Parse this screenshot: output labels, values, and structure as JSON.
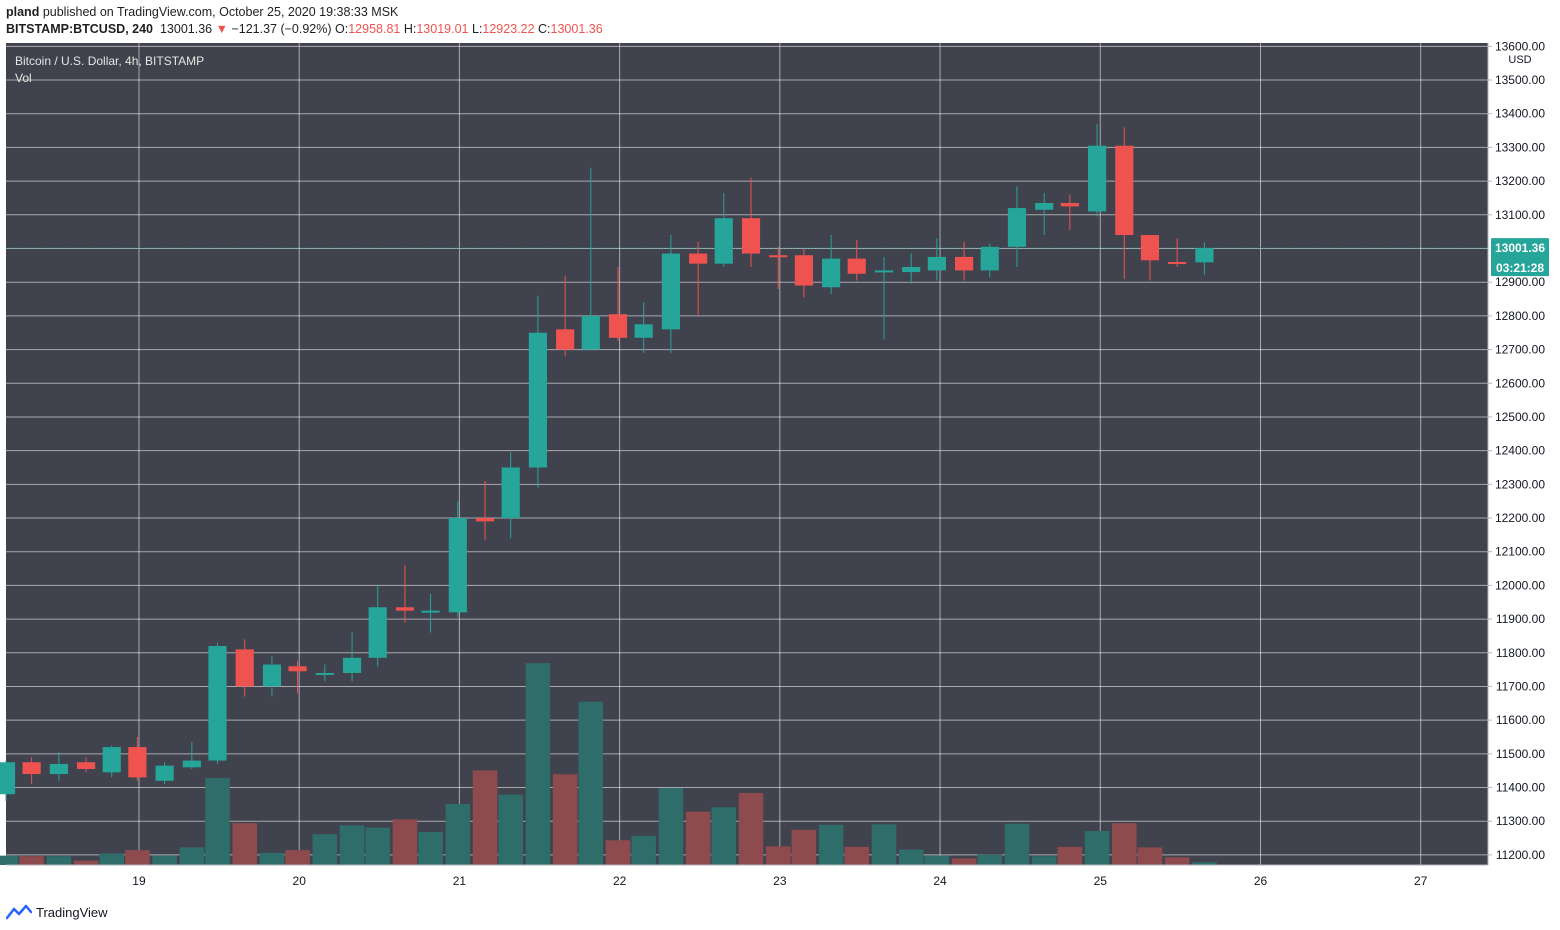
{
  "header": {
    "publisher": "pland",
    "published_line": "published on TradingView.com, October 25, 2020 19:38:33 MSK",
    "symbol": "BITSTAMP:BTCUSD, 240",
    "last": "13001.36",
    "change": "−121.37 (−0.92%)",
    "o_label": "O:",
    "o_value": "12958.81",
    "h_label": "H:",
    "h_value": "13019.01",
    "l_label": "L:",
    "l_value": "12923.22",
    "c_label": "C:",
    "c_value": "13001.36"
  },
  "legend": {
    "title": "Bitcoin / U.S. Dollar, 4h, BITSTAMP",
    "volume_label": "Vol"
  },
  "price_axis": {
    "unit": "USD",
    "current_price": "13001.36",
    "countdown": "03:21:28"
  },
  "footer": {
    "brand": "TradingView"
  },
  "colors": {
    "background": "#40424d",
    "grid": "#ffffff",
    "up": "#26a69a",
    "down": "#ef5350",
    "up_volume": "#2e6d6a",
    "down_volume": "#8e4b4e",
    "axis_text": "#131722"
  },
  "chart_data": {
    "type": "candlestick",
    "title": "Bitcoin / U.S. Dollar, 4h, BITSTAMP",
    "ylabel": "USD",
    "ylim": [
      11170,
      13610
    ],
    "yticks": [
      11200,
      11300,
      11400,
      11500,
      11600,
      11700,
      11800,
      11900,
      12000,
      12100,
      12200,
      12300,
      12400,
      12500,
      12600,
      12700,
      12800,
      12900,
      13000,
      13100,
      13200,
      13300,
      13400,
      13500,
      13600
    ],
    "xlim": [
      18.17,
      27.42
    ],
    "xticks": [
      {
        "x": 19,
        "label": "19"
      },
      {
        "x": 20,
        "label": "20"
      },
      {
        "x": 21,
        "label": "21"
      },
      {
        "x": 22,
        "label": "22"
      },
      {
        "x": 23,
        "label": "23"
      },
      {
        "x": 24,
        "label": "24"
      },
      {
        "x": 25,
        "label": "25"
      },
      {
        "x": 26,
        "label": "26"
      },
      {
        "x": 27,
        "label": "27"
      }
    ],
    "candle_interval_days": 0.1667,
    "candles": [
      {
        "t": 18.17,
        "o": 11380,
        "h": 11480,
        "l": 11360,
        "c": 11475,
        "v": 0.17
      },
      {
        "t": 18.33,
        "o": 11475,
        "h": 11490,
        "l": 11410,
        "c": 11440,
        "v": 0.16
      },
      {
        "t": 18.5,
        "o": 11440,
        "h": 11505,
        "l": 11420,
        "c": 11470,
        "v": 0.16
      },
      {
        "t": 18.67,
        "o": 11475,
        "h": 11490,
        "l": 11445,
        "c": 11455,
        "v": 0.08
      },
      {
        "t": 18.83,
        "o": 11445,
        "h": 11525,
        "l": 11430,
        "c": 11520,
        "v": 0.21
      },
      {
        "t": 18.99,
        "o": 11520,
        "h": 11550,
        "l": 11420,
        "c": 11430,
        "v": 0.27
      },
      {
        "t": 19.16,
        "o": 11420,
        "h": 11475,
        "l": 11410,
        "c": 11465,
        "v": 0.17
      },
      {
        "t": 19.33,
        "o": 11460,
        "h": 11535,
        "l": 11455,
        "c": 11480,
        "v": 0.32
      },
      {
        "t": 19.49,
        "o": 11480,
        "h": 11830,
        "l": 11470,
        "c": 11820,
        "v": 1.58
      },
      {
        "t": 19.66,
        "o": 11810,
        "h": 11840,
        "l": 11670,
        "c": 11700,
        "v": 0.76
      },
      {
        "t": 19.83,
        "o": 11700,
        "h": 11790,
        "l": 11670,
        "c": 11765,
        "v": 0.22
      },
      {
        "t": 19.99,
        "o": 11760,
        "h": 11775,
        "l": 11680,
        "c": 11745,
        "v": 0.27
      },
      {
        "t": 20.16,
        "o": 11740,
        "h": 11765,
        "l": 11715,
        "c": 11740,
        "v": 0.56
      },
      {
        "t": 20.33,
        "o": 11740,
        "h": 11860,
        "l": 11715,
        "c": 11785,
        "v": 0.72
      },
      {
        "t": 20.49,
        "o": 11785,
        "h": 12000,
        "l": 11760,
        "c": 11935,
        "v": 0.68
      },
      {
        "t": 20.66,
        "o": 11935,
        "h": 12060,
        "l": 11890,
        "c": 11925,
        "v": 0.83
      },
      {
        "t": 20.82,
        "o": 11925,
        "h": 11975,
        "l": 11860,
        "c": 11925,
        "v": 0.6
      },
      {
        "t": 20.99,
        "o": 11920,
        "h": 12250,
        "l": 11905,
        "c": 12200,
        "v": 1.11
      },
      {
        "t": 21.16,
        "o": 12200,
        "h": 12310,
        "l": 12135,
        "c": 12190,
        "v": 1.72
      },
      {
        "t": 21.32,
        "o": 12200,
        "h": 12395,
        "l": 12140,
        "c": 12350,
        "v": 1.28
      },
      {
        "t": 21.49,
        "o": 12350,
        "h": 12860,
        "l": 12290,
        "c": 12750,
        "v": 3.67
      },
      {
        "t": 21.66,
        "o": 12760,
        "h": 12920,
        "l": 12680,
        "c": 12700,
        "v": 1.65
      },
      {
        "t": 21.82,
        "o": 12700,
        "h": 13240,
        "l": 12700,
        "c": 12800,
        "v": 2.97
      },
      {
        "t": 21.99,
        "o": 12805,
        "h": 12945,
        "l": 12725,
        "c": 12735,
        "v": 0.45
      },
      {
        "t": 22.15,
        "o": 12735,
        "h": 12840,
        "l": 12690,
        "c": 12775,
        "v": 0.53
      },
      {
        "t": 22.32,
        "o": 12760,
        "h": 13040,
        "l": 12690,
        "c": 12985,
        "v": 1.4
      },
      {
        "t": 22.49,
        "o": 12985,
        "h": 13020,
        "l": 12800,
        "c": 12955,
        "v": 0.97
      },
      {
        "t": 22.65,
        "o": 12955,
        "h": 13165,
        "l": 12945,
        "c": 13090,
        "v": 1.05
      },
      {
        "t": 22.82,
        "o": 13090,
        "h": 13210,
        "l": 12945,
        "c": 12985,
        "v": 1.31
      },
      {
        "t": 22.99,
        "o": 12980,
        "h": 13005,
        "l": 12880,
        "c": 12975,
        "v": 0.34
      },
      {
        "t": 23.15,
        "o": 12980,
        "h": 13000,
        "l": 12855,
        "c": 12890,
        "v": 0.64
      },
      {
        "t": 23.32,
        "o": 12885,
        "h": 13040,
        "l": 12865,
        "c": 12970,
        "v": 0.73
      },
      {
        "t": 23.48,
        "o": 12970,
        "h": 13025,
        "l": 12905,
        "c": 12925,
        "v": 0.33
      },
      {
        "t": 23.65,
        "o": 12930,
        "h": 12975,
        "l": 12730,
        "c": 12935,
        "v": 0.74
      },
      {
        "t": 23.82,
        "o": 12930,
        "h": 12985,
        "l": 12895,
        "c": 12945,
        "v": 0.28
      },
      {
        "t": 23.98,
        "o": 12935,
        "h": 13030,
        "l": 12905,
        "c": 12975,
        "v": 0.17
      },
      {
        "t": 24.15,
        "o": 12975,
        "h": 13020,
        "l": 12905,
        "c": 12935,
        "v": 0.12
      },
      {
        "t": 24.31,
        "o": 12935,
        "h": 13015,
        "l": 12915,
        "c": 13005,
        "v": 0.19
      },
      {
        "t": 24.48,
        "o": 13005,
        "h": 13185,
        "l": 12945,
        "c": 13120,
        "v": 0.75
      },
      {
        "t": 24.65,
        "o": 13115,
        "h": 13165,
        "l": 13040,
        "c": 13135,
        "v": 0.16
      },
      {
        "t": 24.81,
        "o": 13135,
        "h": 13160,
        "l": 13055,
        "c": 13125,
        "v": 0.33
      },
      {
        "t": 24.98,
        "o": 13110,
        "h": 13370,
        "l": 13095,
        "c": 13305,
        "v": 0.62
      },
      {
        "t": 25.15,
        "o": 13305,
        "h": 13360,
        "l": 12910,
        "c": 13040,
        "v": 0.76
      },
      {
        "t": 25.31,
        "o": 13040,
        "h": 13040,
        "l": 12905,
        "c": 12965,
        "v": 0.32
      },
      {
        "t": 25.48,
        "o": 12960,
        "h": 13030,
        "l": 12945,
        "c": 12958,
        "v": 0.14
      },
      {
        "t": 25.65,
        "o": 12959,
        "h": 13019,
        "l": 12923,
        "c": 13001,
        "v": 0.05
      }
    ]
  }
}
